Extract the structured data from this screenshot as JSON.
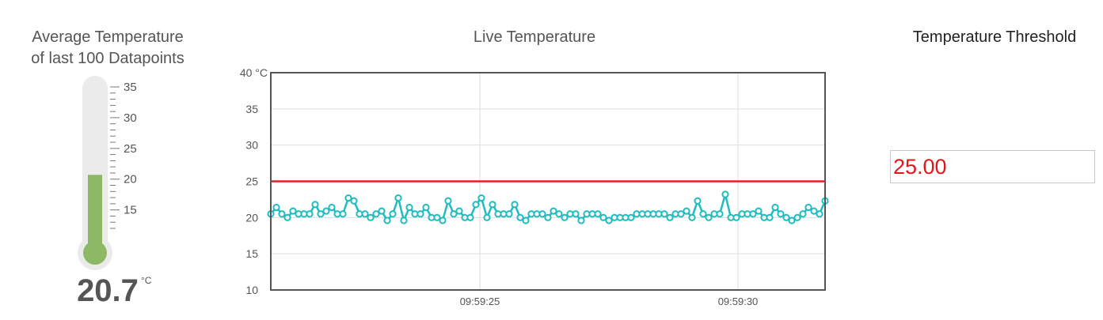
{
  "avg_panel": {
    "title_line1": "Average Temperature",
    "title_line2": "of last 100 Datapoints",
    "value": "20.7",
    "unit": "°C",
    "scale_min": 12,
    "scale_max": 35,
    "scale_labels": [
      "35",
      "30",
      "25",
      "20",
      "15"
    ],
    "fill_color": "#8db866",
    "tube_color": "#ebebeb"
  },
  "live_panel": {
    "title": "Live Temperature"
  },
  "threshold_panel": {
    "title": "Temperature Threshold",
    "value": "25.00",
    "value_color": "#e01818"
  },
  "chart_data": {
    "type": "line",
    "title": "Live Temperature",
    "xlabel": "",
    "ylabel": "",
    "ylim": [
      10,
      40
    ],
    "yticks": [
      40,
      35,
      30,
      25,
      20,
      15,
      10
    ],
    "ytick_labels": [
      "40 °C",
      "35",
      "30",
      "25",
      "20",
      "15",
      "10"
    ],
    "xticks": [
      "09:59:25",
      "09:59:30"
    ],
    "grid": true,
    "threshold": 25,
    "threshold_color": "#e02020",
    "series_color": "#1fbcc0",
    "series": [
      {
        "values": [
          20.5,
          21.4,
          20.5,
          20.0,
          20.9,
          20.5,
          20.5,
          20.5,
          21.8,
          20.5,
          20.9,
          21.4,
          20.5,
          20.5,
          22.7,
          22.3,
          20.5,
          20.5,
          20.0,
          20.5,
          20.9,
          19.6,
          20.5,
          22.7,
          19.6,
          21.4,
          20.5,
          20.5,
          21.4,
          20.0,
          20.0,
          19.6,
          22.3,
          20.5,
          20.9,
          20.0,
          20.0,
          21.8,
          22.7,
          20.0,
          21.8,
          20.5,
          20.5,
          20.5,
          21.8,
          20.0,
          19.6,
          20.5,
          20.5,
          20.5,
          20.0,
          20.9,
          20.5,
          20.0,
          20.5,
          20.5,
          19.6,
          20.5,
          20.5,
          20.5,
          20.0,
          19.6,
          20.0,
          20.0,
          20.0,
          20.0,
          20.5,
          20.5,
          20.5,
          20.5,
          20.5,
          20.5,
          20.0,
          20.5,
          20.5,
          20.9,
          20.0,
          22.3,
          20.5,
          20.0,
          20.5,
          20.5,
          23.2,
          20.0,
          20.0,
          20.5,
          20.5,
          20.5,
          20.9,
          20.0,
          20.0,
          21.4,
          20.5,
          20.0,
          19.6,
          20.0,
          20.5,
          21.4,
          20.9,
          20.5,
          22.3
        ]
      }
    ]
  }
}
